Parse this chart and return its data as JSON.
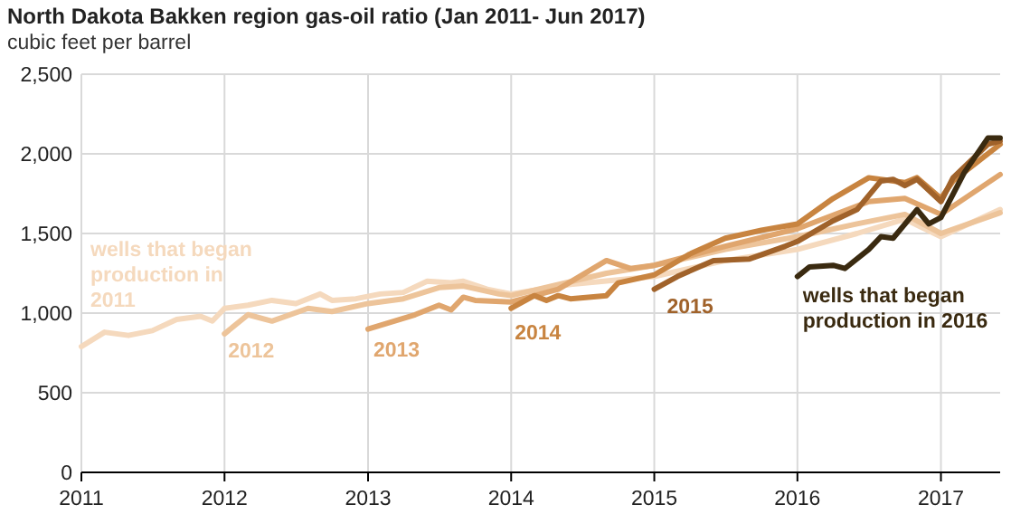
{
  "chart_data": {
    "type": "line",
    "title": "North Dakota Bakken region gas-oil ratio (Jan 2011- Jun 2017)",
    "subtitle": "cubic feet per barrel",
    "xlim": [
      "2011-01",
      "2017-06"
    ],
    "xticks": [
      {
        "value": "2011-01",
        "label": "2011"
      },
      {
        "value": "2012-01",
        "label": "2012"
      },
      {
        "value": "2013-01",
        "label": "2013"
      },
      {
        "value": "2014-01",
        "label": "2014"
      },
      {
        "value": "2015-01",
        "label": "2015"
      },
      {
        "value": "2016-01",
        "label": "2016"
      },
      {
        "value": "2017-01",
        "label": "2017"
      }
    ],
    "ylim": [
      0,
      2500
    ],
    "yticks": [
      {
        "value": 0,
        "label": "0"
      },
      {
        "value": 500,
        "label": "500"
      },
      {
        "value": 1000,
        "label": "1,000"
      },
      {
        "value": 1500,
        "label": "1,500"
      },
      {
        "value": 2000,
        "label": "2,000"
      },
      {
        "value": 2500,
        "label": "2,500"
      }
    ],
    "grid": true,
    "line_style": "solid",
    "marker": "none",
    "series": [
      {
        "name": "wells that began production in 2011",
        "color": "#f5d9bd",
        "x": [
          "2011-01",
          "2011-03",
          "2011-05",
          "2011-07",
          "2011-09",
          "2011-11",
          "2011-12",
          "2012-01",
          "2012-03",
          "2012-05",
          "2012-07",
          "2012-09",
          "2012-10",
          "2012-12",
          "2013-02",
          "2013-04",
          "2013-06",
          "2013-08",
          "2013-09",
          "2013-11",
          "2014-01",
          "2014-06",
          "2015-01",
          "2015-07",
          "2016-01",
          "2016-06",
          "2016-10",
          "2017-01",
          "2017-06"
        ],
        "values": [
          790,
          880,
          860,
          890,
          960,
          980,
          950,
          1030,
          1050,
          1080,
          1060,
          1120,
          1080,
          1090,
          1120,
          1130,
          1200,
          1190,
          1200,
          1150,
          1120,
          1180,
          1230,
          1330,
          1400,
          1500,
          1590,
          1480,
          1650
        ]
      },
      {
        "name": "2012",
        "color": "#edc49a",
        "x": [
          "2012-01",
          "2012-03",
          "2012-05",
          "2012-08",
          "2012-10",
          "2013-01",
          "2013-04",
          "2013-07",
          "2013-09",
          "2013-12",
          "2014-01",
          "2014-09",
          "2015-01",
          "2015-07",
          "2016-01",
          "2016-06",
          "2016-10",
          "2017-01",
          "2017-06"
        ],
        "values": [
          870,
          990,
          950,
          1030,
          1010,
          1060,
          1090,
          1160,
          1170,
          1120,
          1110,
          1250,
          1300,
          1400,
          1480,
          1560,
          1620,
          1500,
          1630
        ]
      },
      {
        "name": "2013",
        "color": "#e0a66e",
        "x": [
          "2013-01",
          "2013-05",
          "2013-07",
          "2013-08",
          "2013-09",
          "2013-10",
          "2014-01",
          "2014-05",
          "2014-09",
          "2014-11",
          "2015-01",
          "2015-07",
          "2016-01",
          "2016-07",
          "2016-10",
          "2017-01",
          "2017-06"
        ],
        "values": [
          900,
          990,
          1050,
          1020,
          1100,
          1080,
          1070,
          1150,
          1330,
          1280,
          1300,
          1420,
          1530,
          1700,
          1720,
          1620,
          1870
        ]
      },
      {
        "name": "2014",
        "color": "#c88440",
        "x": [
          "2014-01",
          "2014-03",
          "2014-04",
          "2014-05",
          "2014-06",
          "2014-09",
          "2014-10",
          "2015-01",
          "2015-04",
          "2015-07",
          "2015-10",
          "2016-01",
          "2016-04",
          "2016-07",
          "2016-10",
          "2016-11",
          "2017-01",
          "2017-02",
          "2017-06"
        ],
        "values": [
          1030,
          1110,
          1080,
          1110,
          1090,
          1110,
          1190,
          1240,
          1370,
          1470,
          1520,
          1560,
          1720,
          1850,
          1820,
          1850,
          1720,
          1830,
          2060
        ]
      },
      {
        "name": "2015",
        "color": "#a0622a",
        "x": [
          "2015-01",
          "2015-03",
          "2015-06",
          "2015-09",
          "2015-12",
          "2016-01",
          "2016-04",
          "2016-06",
          "2016-08",
          "2016-09",
          "2016-10",
          "2016-11",
          "2017-01",
          "2017-02",
          "2017-05",
          "2017-06"
        ],
        "values": [
          1150,
          1230,
          1330,
          1340,
          1420,
          1450,
          1580,
          1650,
          1830,
          1840,
          1800,
          1840,
          1700,
          1850,
          2060,
          2080
        ]
      },
      {
        "name": "wells that began production in 2016",
        "color": "#3a2a10",
        "x": [
          "2016-01",
          "2016-02",
          "2016-04",
          "2016-05",
          "2016-07",
          "2016-08",
          "2016-09",
          "2016-11",
          "2016-12",
          "2017-01",
          "2017-03",
          "2017-05",
          "2017-06"
        ],
        "values": [
          1230,
          1290,
          1300,
          1280,
          1400,
          1480,
          1470,
          1650,
          1560,
          1600,
          1880,
          2100,
          2100
        ]
      }
    ]
  }
}
